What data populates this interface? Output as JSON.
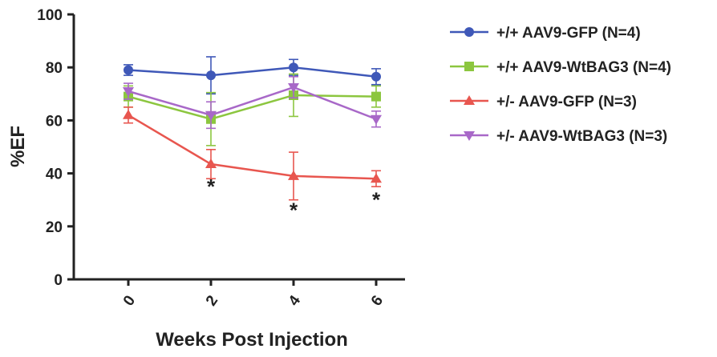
{
  "chart_data": {
    "type": "line",
    "title": "",
    "xlabel": "Weeks Post Injection",
    "ylabel": "%EF",
    "x": [
      0,
      2,
      4,
      6
    ],
    "x_tick_labels": [
      "0",
      "2",
      "4",
      "6"
    ],
    "ylim": [
      0,
      100
    ],
    "y_ticks": [
      0,
      20,
      40,
      60,
      80,
      100
    ],
    "y_tick_labels": [
      "0",
      "20",
      "40",
      "60",
      "80",
      "100"
    ],
    "grid": false,
    "legend_position": "right",
    "series": [
      {
        "name": "+/+ AAV9-GFP (N=4)",
        "color": "#3f58b8",
        "marker": "circle",
        "values": [
          79,
          77,
          80,
          76.5
        ],
        "errors": [
          2,
          7,
          3,
          3
        ]
      },
      {
        "name": "+/+ AAV9-WtBAG3 (N=4)",
        "color": "#8cc63f",
        "marker": "square",
        "values": [
          69,
          60.5,
          69.5,
          69
        ],
        "errors": [
          4,
          10,
          8,
          4
        ]
      },
      {
        "name": "+/- AAV9-GFP (N=3)",
        "color": "#e8564f",
        "marker": "triangle-up",
        "values": [
          62,
          43.5,
          39,
          38
        ],
        "errors": [
          3,
          5.5,
          9,
          3
        ]
      },
      {
        "name": "+/- AAV9-WtBAG3 (N=3)",
        "color": "#a868c8",
        "marker": "triangle-down",
        "values": [
          71,
          62,
          72.5,
          60.5
        ],
        "errors": [
          3,
          5,
          4,
          3
        ]
      }
    ],
    "annotations": [
      {
        "text": "*",
        "x": 2,
        "y": 36
      },
      {
        "text": "*",
        "x": 4,
        "y": 27
      },
      {
        "text": "*",
        "x": 6,
        "y": 31
      }
    ]
  }
}
